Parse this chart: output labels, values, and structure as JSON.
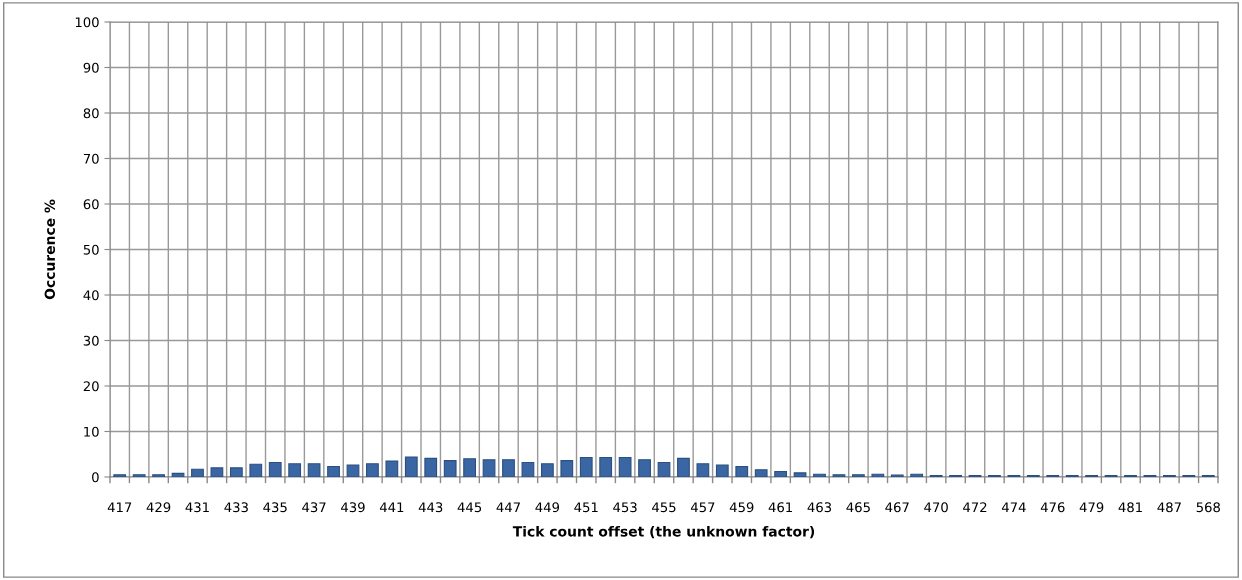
{
  "chart_data": {
    "type": "bar",
    "xlabel": "Tick count offset (the unknown factor)",
    "ylabel": "Occurence %",
    "categories": [
      "417",
      null,
      "429",
      null,
      "431",
      null,
      "433",
      null,
      "435",
      null,
      "437",
      null,
      "439",
      null,
      "441",
      null,
      "443",
      null,
      "445",
      null,
      "447",
      null,
      "449",
      null,
      "451",
      null,
      "453",
      null,
      "455",
      null,
      "457",
      null,
      "459",
      null,
      "461",
      null,
      "463",
      null,
      "465",
      null,
      "467",
      null,
      "470",
      null,
      "472",
      null,
      "474",
      null,
      "476",
      null,
      "479",
      null,
      "481",
      null,
      "487",
      null,
      "568"
    ],
    "values": [
      0.5,
      0.5,
      0.5,
      0.8,
      1.7,
      2.0,
      2.0,
      2.8,
      3.2,
      2.9,
      2.9,
      2.3,
      2.6,
      2.9,
      3.5,
      4.4,
      4.1,
      3.6,
      4.0,
      3.8,
      3.8,
      3.2,
      2.9,
      3.6,
      4.3,
      4.3,
      4.3,
      3.8,
      3.2,
      4.1,
      2.9,
      2.6,
      2.3,
      1.6,
      1.2,
      0.9,
      0.6,
      0.5,
      0.5,
      0.6,
      0.4,
      0.6,
      0.3,
      0.3,
      0.3,
      0.3,
      0.3,
      0.3,
      0.3,
      0.3,
      0.3,
      0.3,
      0.3,
      0.3,
      0.3,
      0.3,
      0.3
    ],
    "color": "#3a67a3",
    "ylim": [
      0,
      100
    ],
    "yticks": [
      0,
      10,
      20,
      30,
      40,
      50,
      60,
      70,
      80,
      90,
      100
    ],
    "grid": true
  }
}
